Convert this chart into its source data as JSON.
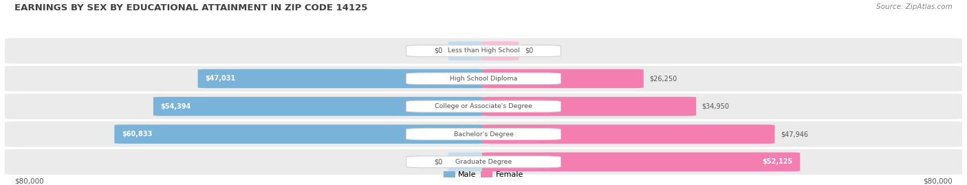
{
  "title": "EARNINGS BY SEX BY EDUCATIONAL ATTAINMENT IN ZIP CODE 14125",
  "source": "Source: ZipAtlas.com",
  "categories": [
    "Less than High School",
    "High School Diploma",
    "College or Associate's Degree",
    "Bachelor's Degree",
    "Graduate Degree"
  ],
  "male_values": [
    0,
    47031,
    54394,
    60833,
    0
  ],
  "female_values": [
    0,
    26250,
    34950,
    47946,
    52125
  ],
  "male_labels": [
    "$0",
    "$47,031",
    "$54,394",
    "$60,833",
    "$0"
  ],
  "female_labels": [
    "$0",
    "$26,250",
    "$34,950",
    "$47,946",
    "$52,125"
  ],
  "male_color": "#7ab3d9",
  "male_color_light": "#c5ddef",
  "female_color": "#f47eb0",
  "female_color_light": "#f9c0d8",
  "row_bg_color": "#ebebeb",
  "title_color": "#404040",
  "label_color": "#555555",
  "source_color": "#888888",
  "max_value": 80000,
  "bar_height": 0.68,
  "legend_male": "Male",
  "legend_female": "Female",
  "axis_label_left": "$80,000",
  "axis_label_right": "$80,000"
}
